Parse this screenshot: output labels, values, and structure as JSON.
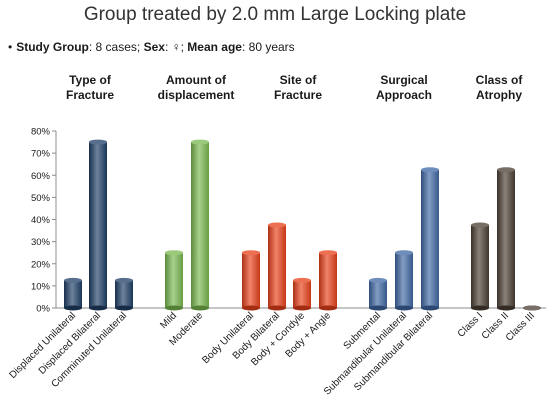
{
  "title": "Group treated by 2.0 mm Large Locking plate",
  "info": {
    "bullet": "•",
    "study_label": "Study Group",
    "study_value": ": 8 cases;",
    "sex_label": "Sex",
    "sex_value": ": ♀;",
    "age_label": "Mean age",
    "age_value": ": 80 years"
  },
  "groups": [
    {
      "heading": "Type of\nFracture",
      "color": "#1f3f66"
    },
    {
      "heading": "Amount of\ndisplacement",
      "color": "#79b84f"
    },
    {
      "heading": "Site of\nFracture",
      "color": "#e8401a"
    },
    {
      "heading": "Surgical\nApproach",
      "color": "#3f67a3"
    },
    {
      "heading": "Class of\nAtrophy",
      "color": "#4a3f33"
    }
  ],
  "chart_data": {
    "type": "bar",
    "title": "Group treated by 2.0 mm Large Locking plate",
    "xlabel": "",
    "ylabel": "",
    "ylim": [
      0,
      80
    ],
    "yticks": [
      "0%",
      "10%",
      "20%",
      "30%",
      "40%",
      "50%",
      "60%",
      "70%",
      "80%"
    ],
    "grid": false,
    "categories": [
      "Displaced Unilateral",
      "Displaced Bilateral",
      "Comminuted Unilateral",
      "Mild",
      "Moderate",
      "Body Unilateral",
      "Body Bilateral",
      "Body + Condyle",
      "Body + Angle",
      "Submental",
      "Submandibular Unilateral",
      "Submandibular Bilateral",
      "Class I",
      "Class II",
      "Class III"
    ],
    "values": [
      12.5,
      75,
      12.5,
      25,
      75,
      25,
      37.5,
      12.5,
      25,
      12.5,
      25,
      62.5,
      37.5,
      62.5,
      0
    ],
    "group_index": [
      0,
      0,
      0,
      1,
      1,
      2,
      2,
      2,
      2,
      3,
      3,
      3,
      4,
      4,
      4
    ]
  }
}
